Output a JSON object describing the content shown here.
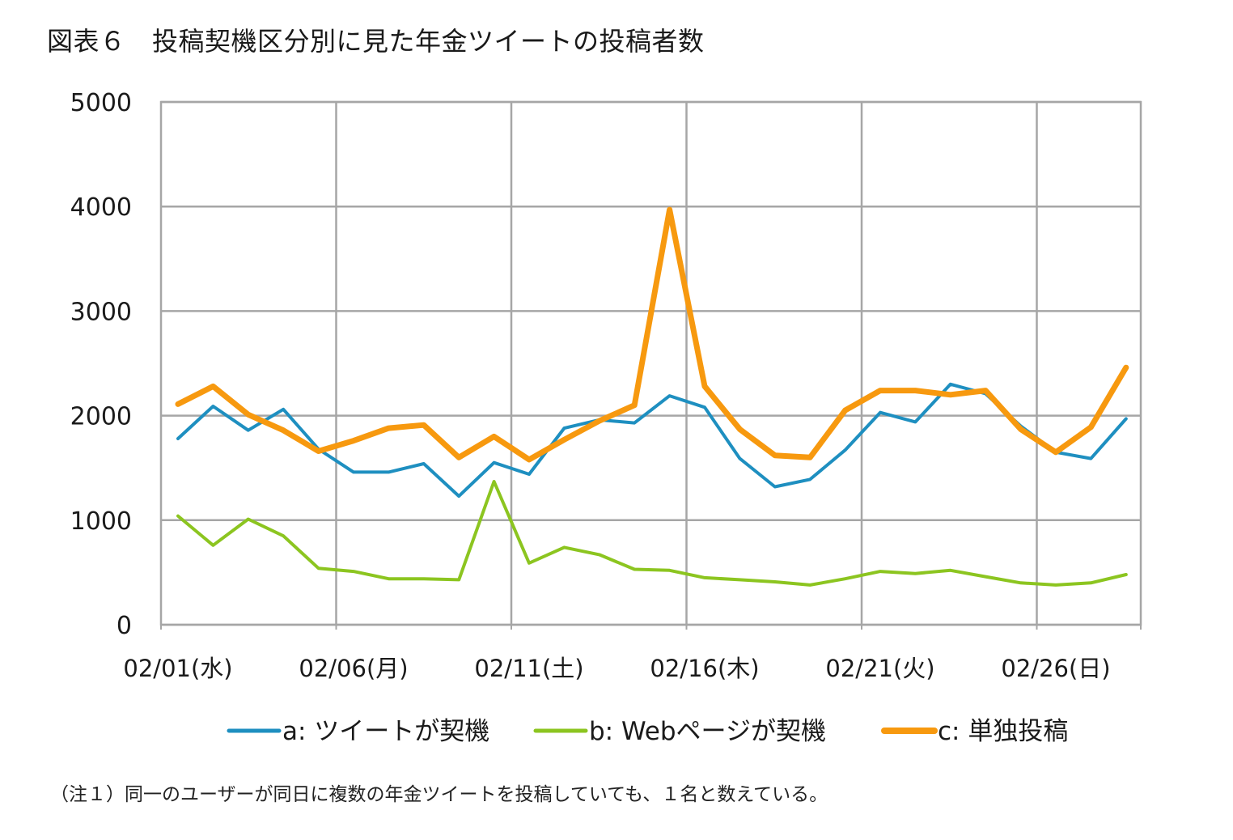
{
  "title": "図表６　投稿契機区分別に見た年金ツイートの投稿者数",
  "note": "（注１）同一のユーザーが同日に複数の年金ツイートを投稿していても、１名と数えている。",
  "chart_data": {
    "type": "line",
    "title": "図表６　投稿契機区分別に見た年金ツイートの投稿者数",
    "xlabel": "",
    "ylabel": "",
    "ylim": [
      0,
      5000
    ],
    "yticks": [
      "0",
      "1000",
      "2000",
      "3000",
      "4000",
      "5000"
    ],
    "ytick_values": [
      0,
      1000,
      2000,
      3000,
      4000,
      5000
    ],
    "xtick_labels": [
      "02/01(水)",
      "02/06(月)",
      "02/11(土)",
      "02/16(木)",
      "02/21(火)",
      "02/26(日)"
    ],
    "grid": true,
    "legend_position": "bottom",
    "series": [
      {
        "name": "a: ツイートが契機",
        "color": "#1e8fc0",
        "width": "thin",
        "values": [
          1780,
          2090,
          1860,
          2060,
          1680,
          1460,
          1460,
          1540,
          1230,
          1550,
          1440,
          1880,
          1960,
          1930,
          2190,
          2080,
          1590,
          1320,
          1390,
          1670,
          2030,
          1940,
          2300,
          2210,
          1900,
          1650,
          1590,
          1970
        ]
      },
      {
        "name": "b: Webページが契機",
        "color": "#8cc520",
        "width": "thin",
        "values": [
          1040,
          760,
          1010,
          850,
          540,
          510,
          440,
          440,
          430,
          1370,
          590,
          740,
          670,
          530,
          520,
          450,
          430,
          410,
          380,
          440,
          510,
          490,
          520,
          460,
          400,
          380,
          400,
          480
        ]
      },
      {
        "name": "c: 単独投稿",
        "color": "#f7990f",
        "width": "thick",
        "values": [
          2110,
          2280,
          2010,
          1860,
          1660,
          1760,
          1880,
          1910,
          1600,
          1800,
          1580,
          1770,
          1950,
          2100,
          3970,
          2280,
          1870,
          1620,
          1600,
          2050,
          2240,
          2240,
          2200,
          2240,
          1870,
          1650,
          1890,
          2460
        ]
      }
    ]
  }
}
